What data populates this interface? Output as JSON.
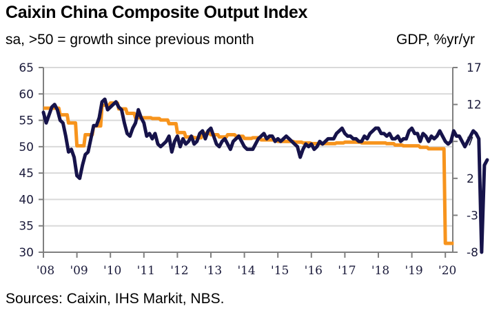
{
  "header": {
    "title": "Caixin China Composite Output Index",
    "subtitle": "sa, >50 = growth since previous month",
    "right_axis_unit": "GDP, %yr/yr"
  },
  "footer": {
    "source": "Sources: Caixin, IHS Markit, NBS."
  },
  "chart_data": {
    "type": "line",
    "title": "Caixin China Composite Output Index",
    "subtitle": "sa, >50 = growth since previous month",
    "xlabel": "",
    "ylabel": "",
    "y2label": "GDP, %yr/yr",
    "x_range": [
      2008,
      2020.3
    ],
    "x_ticks": [
      "'08",
      "'09",
      "'10",
      "'11",
      "'12",
      "'13",
      "'14",
      "'15",
      "'16",
      "'17",
      "'18",
      "'19",
      "'20"
    ],
    "x_tick_values": [
      2008,
      2009,
      2010,
      2011,
      2012,
      2013,
      2014,
      2015,
      2016,
      2017,
      2018,
      2019,
      2020
    ],
    "ylim": [
      30,
      65
    ],
    "y_ticks": [
      65,
      60,
      55,
      50,
      45,
      40,
      35,
      30
    ],
    "y2lim": [
      -8,
      17
    ],
    "y2_ticks": [
      17,
      12,
      7,
      2,
      -3,
      -8
    ],
    "grid": true,
    "legend": "none",
    "colors": {
      "pmi": "#16134a",
      "gdp": "#f7941d",
      "grid": "#d9d9d9",
      "axis": "#7f7f7f"
    },
    "series": [
      {
        "name": "Caixin China Composite Output Index",
        "axis": "left",
        "frequency": "monthly",
        "start": 2008.0,
        "values": [
          56.5,
          54.5,
          56.0,
          57.5,
          58.0,
          57.0,
          55.0,
          54.5,
          52.0,
          49.0,
          49.5,
          48.0,
          44.5,
          44.0,
          46.5,
          48.5,
          49.0,
          51.5,
          54.0,
          54.0,
          55.5,
          58.5,
          59.0,
          57.0,
          57.5,
          58.0,
          58.5,
          57.5,
          57.0,
          54.5,
          52.5,
          52.0,
          53.5,
          54.5,
          57.0,
          55.5,
          54.5,
          52.0,
          52.5,
          51.5,
          52.5,
          50.5,
          50.0,
          50.5,
          51.0,
          52.0,
          49.0,
          51.0,
          52.0,
          50.0,
          51.5,
          50.5,
          51.0,
          52.0,
          50.5,
          51.0,
          52.5,
          53.0,
          51.5,
          53.0,
          53.5,
          52.0,
          50.5,
          50.0,
          51.0,
          51.5,
          50.5,
          49.5,
          51.0,
          51.5,
          52.0,
          51.0,
          50.0,
          49.5,
          49.5,
          49.5,
          50.5,
          51.5,
          52.0,
          52.5,
          51.5,
          52.0,
          52.0,
          51.0,
          51.5,
          51.0,
          51.5,
          52.0,
          51.5,
          51.0,
          50.5,
          50.0,
          48.0,
          49.5,
          50.5,
          50.0,
          50.5,
          49.5,
          50.0,
          51.0,
          50.5,
          51.0,
          51.5,
          51.5,
          51.5,
          52.5,
          53.0,
          53.5,
          52.5,
          52.0,
          52.0,
          51.5,
          51.5,
          51.0,
          51.0,
          52.0,
          51.5,
          52.5,
          53.0,
          53.5,
          53.5,
          52.5,
          52.5,
          52.0,
          52.5,
          51.5,
          51.5,
          52.0,
          51.0,
          51.5,
          51.5,
          53.0,
          53.5,
          52.5,
          52.5,
          51.0,
          52.5,
          52.0,
          51.0,
          52.0,
          51.5,
          52.0,
          53.0,
          52.0,
          51.0,
          50.5,
          51.0,
          53.0,
          52.0,
          52.0,
          51.0,
          50.0,
          51.0,
          52.0,
          53.0,
          52.5,
          51.5,
          27.5,
          46.5,
          47.5
        ]
      },
      {
        "name": "GDP, %yr/yr",
        "axis": "right",
        "frequency": "quarterly",
        "start": 2008.0,
        "values": [
          11.5,
          11.5,
          10.6,
          9.5,
          6.4,
          7.9,
          9.1,
          11.9,
          12.2,
          11.4,
          10.8,
          10.2,
          10.2,
          10.1,
          9.9,
          9.4,
          8.2,
          7.6,
          7.5,
          8.1,
          7.9,
          7.6,
          7.9,
          7.7,
          7.4,
          7.5,
          7.2,
          7.2,
          7.0,
          7.0,
          6.9,
          6.8,
          6.7,
          6.7,
          6.7,
          6.8,
          6.9,
          6.9,
          6.8,
          6.8,
          6.8,
          6.7,
          6.5,
          6.4,
          6.4,
          6.2,
          6.0,
          6.0,
          -6.8,
          -6.8
        ]
      }
    ]
  }
}
